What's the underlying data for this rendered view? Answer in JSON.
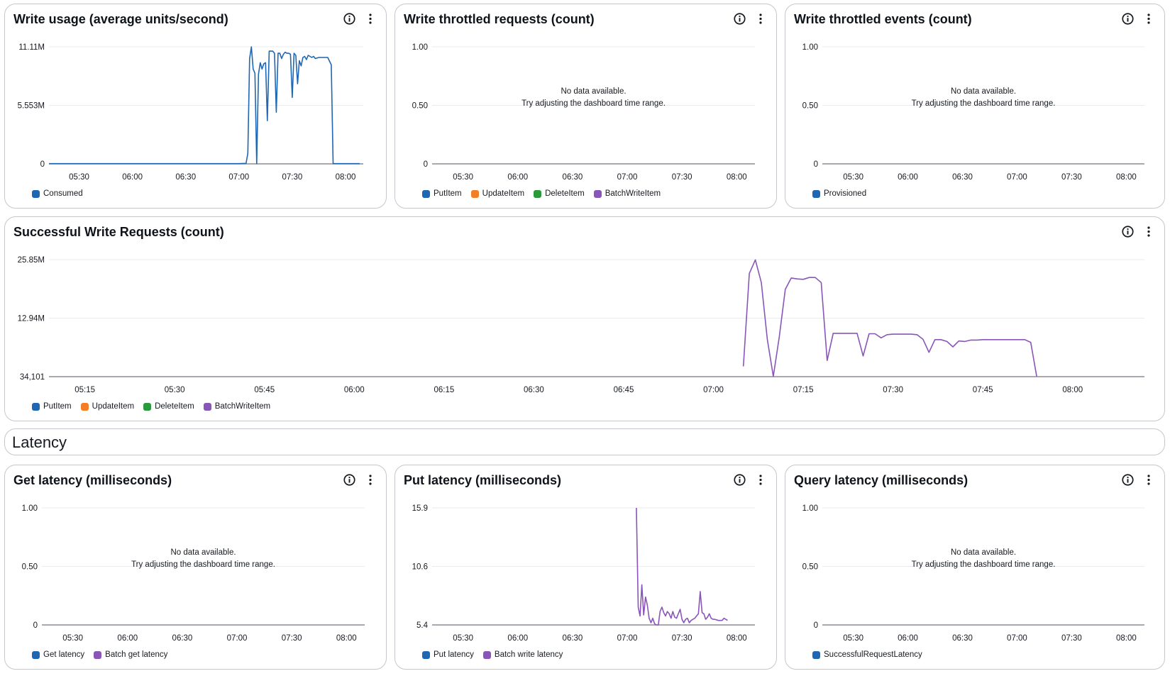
{
  "section": {
    "title": "Latency"
  },
  "colors": {
    "blue": "#1f66b3",
    "orange": "#f47e25",
    "green": "#2a9a3b",
    "purple": "#8a55b9"
  },
  "panels": [
    {
      "id": "write-usage",
      "title": "Write usage (average units/second)",
      "legend": [
        {
          "label": "Consumed",
          "color": "#1f66b3"
        }
      ]
    },
    {
      "id": "write-throttled-requests",
      "title": "Write throttled requests (count)",
      "nodata_line1": "No data available.",
      "nodata_line2": "Try adjusting the dashboard time range.",
      "legend": [
        {
          "label": "PutItem",
          "color": "#1f66b3"
        },
        {
          "label": "UpdateItem",
          "color": "#f47e25"
        },
        {
          "label": "DeleteItem",
          "color": "#2a9a3b"
        },
        {
          "label": "BatchWriteItem",
          "color": "#8a55b9"
        }
      ]
    },
    {
      "id": "write-throttled-events",
      "title": "Write throttled events (count)",
      "nodata_line1": "No data available.",
      "nodata_line2": "Try adjusting the dashboard time range.",
      "legend": [
        {
          "label": "Provisioned",
          "color": "#1f66b3"
        }
      ]
    },
    {
      "id": "successful-write-requests",
      "title": "Successful Write Requests (count)",
      "legend": [
        {
          "label": "PutItem",
          "color": "#1f66b3"
        },
        {
          "label": "UpdateItem",
          "color": "#f47e25"
        },
        {
          "label": "DeleteItem",
          "color": "#2a9a3b"
        },
        {
          "label": "BatchWriteItem",
          "color": "#8a55b9"
        }
      ]
    },
    {
      "id": "get-latency",
      "title": "Get latency (milliseconds)",
      "nodata_line1": "No data available.",
      "nodata_line2": "Try adjusting the dashboard time range.",
      "legend": [
        {
          "label": "Get latency",
          "color": "#1f66b3"
        },
        {
          "label": "Batch get latency",
          "color": "#8a55b9"
        }
      ]
    },
    {
      "id": "put-latency",
      "title": "Put latency (milliseconds)",
      "legend": [
        {
          "label": "Put latency",
          "color": "#1f66b3"
        },
        {
          "label": "Batch write latency",
          "color": "#8a55b9"
        }
      ]
    },
    {
      "id": "query-latency",
      "title": "Query latency (milliseconds)",
      "nodata_line1": "No data available.",
      "nodata_line2": "Try adjusting the dashboard time range.",
      "legend": [
        {
          "label": "SuccessfulRequestLatency",
          "color": "#1f66b3"
        }
      ]
    }
  ],
  "chart_data": [
    {
      "type": "line",
      "title": "Write usage (average units/second)",
      "xlim": [
        "05:13",
        "08:10"
      ],
      "x_ticks": [
        "05:30",
        "06:00",
        "06:30",
        "07:00",
        "07:30",
        "08:00"
      ],
      "y_ticks": [
        "0",
        "5.553M",
        "11.11M"
      ],
      "ylim": [
        0,
        11.11
      ],
      "y_unit": "M",
      "series": [
        {
          "name": "Consumed",
          "color": "#1f66b3",
          "x": [
            "05:13",
            "05:30",
            "06:00",
            "06:30",
            "07:00",
            "07:04",
            "07:05",
            "07:06",
            "07:07",
            "07:08",
            "07:09",
            "07:10",
            "07:11",
            "07:12",
            "07:13",
            "07:14",
            "07:15",
            "07:16",
            "07:17",
            "07:19",
            "07:20",
            "07:21",
            "07:22",
            "07:23",
            "07:24",
            "07:25",
            "07:26",
            "07:27",
            "07:28",
            "07:29",
            "07:30",
            "07:31",
            "07:32",
            "07:33",
            "07:34",
            "07:35",
            "07:36",
            "07:37",
            "07:38",
            "07:39",
            "07:40",
            "07:41",
            "07:42",
            "07:43",
            "07:45",
            "07:47",
            "07:50",
            "07:52",
            "07:53",
            "07:54",
            "07:55",
            "08:00",
            "08:08"
          ],
          "y": [
            0.02,
            0.02,
            0.02,
            0.02,
            0.02,
            0.05,
            1.0,
            10.0,
            11.1,
            9.0,
            8.6,
            0.02,
            8.5,
            9.6,
            9.0,
            9.5,
            9.6,
            4.1,
            10.7,
            10.7,
            10.5,
            4.9,
            10.5,
            10.5,
            10.0,
            10.4,
            10.6,
            10.5,
            10.5,
            10.4,
            6.3,
            10.5,
            10.3,
            7.6,
            9.8,
            9.3,
            10.1,
            10.2,
            9.9,
            10.3,
            10.2,
            10.1,
            10.2,
            10.0,
            10.1,
            10.1,
            10.1,
            9.4,
            0.02,
            0.02,
            0.02,
            0.02,
            0.02
          ]
        }
      ]
    },
    {
      "type": "line",
      "title": "Write throttled requests (count)",
      "xlim": [
        "05:13",
        "08:10"
      ],
      "x_ticks": [
        "05:30",
        "06:00",
        "06:30",
        "07:00",
        "07:30",
        "08:00"
      ],
      "y_ticks": [
        "0",
        "0.50",
        "1.00"
      ],
      "ylim": [
        0,
        1
      ],
      "series": []
    },
    {
      "type": "line",
      "title": "Write throttled events (count)",
      "xlim": [
        "05:13",
        "08:10"
      ],
      "x_ticks": [
        "05:30",
        "06:00",
        "06:30",
        "07:00",
        "07:30",
        "08:00"
      ],
      "y_ticks": [
        "0",
        "0.50",
        "1.00"
      ],
      "ylim": [
        0,
        1
      ],
      "series": []
    },
    {
      "type": "line",
      "title": "Successful Write Requests (count)",
      "xlim": [
        "05:09",
        "08:12"
      ],
      "x_ticks": [
        "05:15",
        "05:30",
        "05:45",
        "06:00",
        "06:15",
        "06:30",
        "06:45",
        "07:00",
        "07:15",
        "07:30",
        "07:45",
        "08:00"
      ],
      "y_ticks": [
        "34,101",
        "12.94M",
        "25.85M"
      ],
      "ylim": [
        0.034101,
        25.85
      ],
      "y_unit": "M",
      "series": [
        {
          "name": "BatchWriteItem",
          "color": "#8a55b9",
          "x": [
            "07:05",
            "07:06",
            "07:07",
            "07:08",
            "07:09",
            "07:10",
            "07:11",
            "07:12",
            "07:13",
            "07:14",
            "07:15",
            "07:16",
            "07:17",
            "07:18",
            "07:19",
            "07:20",
            "07:21",
            "07:24",
            "07:25",
            "07:26",
            "07:27",
            "07:28",
            "07:29",
            "07:30",
            "07:33",
            "07:34",
            "07:35",
            "07:36",
            "07:37",
            "07:38",
            "07:39",
            "07:40",
            "07:41",
            "07:42",
            "07:43",
            "07:44",
            "07:45",
            "07:47",
            "07:52",
            "07:53",
            "07:54"
          ],
          "y": [
            2.3,
            22.8,
            25.8,
            20.8,
            8.2,
            0.1,
            8.8,
            19.3,
            21.8,
            21.6,
            21.5,
            21.9,
            21.9,
            20.8,
            3.6,
            9.6,
            9.6,
            9.6,
            4.6,
            9.5,
            9.5,
            8.6,
            9.3,
            9.4,
            9.4,
            9.3,
            8.3,
            5.4,
            8.2,
            8.2,
            7.8,
            6.6,
            7.9,
            7.8,
            8.1,
            8.1,
            8.2,
            8.2,
            8.2,
            7.6,
            0.1
          ]
        }
      ]
    },
    {
      "type": "line",
      "title": "Get latency (milliseconds)",
      "xlim": [
        "05:13",
        "08:10"
      ],
      "x_ticks": [
        "05:30",
        "06:00",
        "06:30",
        "07:00",
        "07:30",
        "08:00"
      ],
      "y_ticks": [
        "0",
        "0.50",
        "1.00"
      ],
      "ylim": [
        0,
        1
      ],
      "series": []
    },
    {
      "type": "line",
      "title": "Put latency (milliseconds)",
      "xlim": [
        "05:13",
        "08:10"
      ],
      "x_ticks": [
        "05:30",
        "06:00",
        "06:30",
        "07:00",
        "07:30",
        "08:00"
      ],
      "y_ticks": [
        "5.4",
        "10.6",
        "15.9"
      ],
      "ylim": [
        5.4,
        15.9
      ],
      "series": [
        {
          "name": "Batch write latency",
          "color": "#8a55b9",
          "x": [
            "07:05",
            "07:06",
            "07:07",
            "07:08",
            "07:09",
            "07:10",
            "07:11",
            "07:12",
            "07:13",
            "07:14",
            "07:15",
            "07:16",
            "07:17",
            "07:18",
            "07:19",
            "07:20",
            "07:21",
            "07:22",
            "07:23",
            "07:24",
            "07:25",
            "07:26",
            "07:27",
            "07:28",
            "07:29",
            "07:30",
            "07:31",
            "07:32",
            "07:33",
            "07:34",
            "07:35",
            "07:36",
            "07:37",
            "07:38",
            "07:39",
            "07:40",
            "07:41",
            "07:42",
            "07:43",
            "07:44",
            "07:45",
            "07:46",
            "07:47",
            "07:48",
            "07:50",
            "07:52",
            "07:53",
            "07:54",
            "07:55"
          ],
          "y": [
            15.9,
            7.0,
            6.2,
            9.0,
            6.3,
            7.9,
            7.2,
            6.0,
            5.6,
            6.0,
            5.5,
            5.4,
            5.4,
            6.6,
            7.0,
            6.5,
            6.2,
            6.6,
            6.4,
            6.0,
            6.6,
            6.1,
            6.0,
            6.4,
            6.8,
            5.9,
            5.6,
            5.9,
            6.0,
            5.6,
            5.8,
            5.9,
            6.0,
            6.2,
            6.4,
            8.4,
            6.5,
            6.4,
            5.9,
            6.1,
            6.4,
            6.0,
            5.9,
            5.9,
            5.8,
            5.8,
            6.0,
            5.9,
            5.8
          ]
        }
      ]
    },
    {
      "type": "line",
      "title": "Query latency (milliseconds)",
      "xlim": [
        "05:13",
        "08:10"
      ],
      "x_ticks": [
        "05:30",
        "06:00",
        "06:30",
        "07:00",
        "07:30",
        "08:00"
      ],
      "y_ticks": [
        "0",
        "0.50",
        "1.00"
      ],
      "ylim": [
        0,
        1
      ],
      "series": []
    }
  ]
}
